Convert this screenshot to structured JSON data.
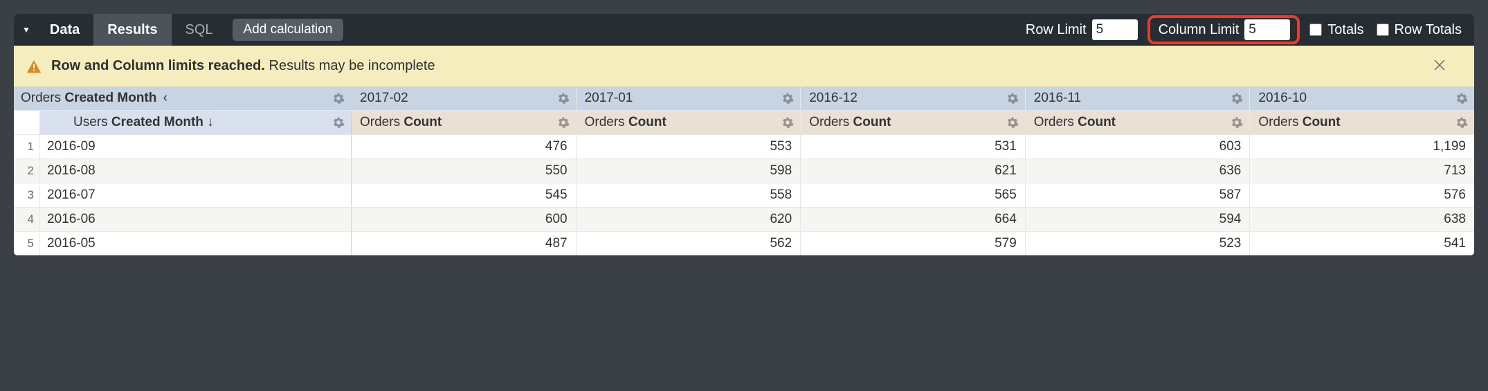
{
  "toolbar": {
    "data_label": "Data",
    "tabs": {
      "results": "Results",
      "sql": "SQL"
    },
    "add_calc": "Add calculation",
    "row_limit_label": "Row Limit",
    "row_limit_value": "5",
    "col_limit_label": "Column Limit",
    "col_limit_value": "5",
    "totals_label": "Totals",
    "totals_checked": false,
    "row_totals_label": "Row Totals",
    "row_totals_checked": false,
    "highlight_color": "#e53e30"
  },
  "warning": {
    "bold": "Row and Column limits reached.",
    "rest": "Results may be incomplete",
    "bg": "#f6edbf",
    "icon_color": "#db8a1d"
  },
  "table": {
    "pivot_dim_prefix": "Orders",
    "pivot_dim_field": "Created Month",
    "sub_dim_prefix": "Users",
    "sub_dim_field": "Created Month",
    "sort_indicator": "↓",
    "columns": [
      "2017-02",
      "2017-01",
      "2016-12",
      "2016-11",
      "2016-10"
    ],
    "measure_prefix": "Orders",
    "measure_field": "Count",
    "rows": [
      {
        "label": "2016-09",
        "values": [
          "476",
          "553",
          "531",
          "603",
          "1,199"
        ]
      },
      {
        "label": "2016-08",
        "values": [
          "550",
          "598",
          "621",
          "636",
          "713"
        ]
      },
      {
        "label": "2016-07",
        "values": [
          "545",
          "558",
          "565",
          "587",
          "576"
        ]
      },
      {
        "label": "2016-06",
        "values": [
          "600",
          "620",
          "664",
          "594",
          "638"
        ]
      },
      {
        "label": "2016-05",
        "values": [
          "487",
          "562",
          "579",
          "523",
          "541"
        ]
      }
    ],
    "header1_bg": "#c7d4e4",
    "header2_left_bg": "#d7e0ec",
    "header2_right_bg": "#eae0d4",
    "stripe_bg": "#f5f5f2"
  }
}
